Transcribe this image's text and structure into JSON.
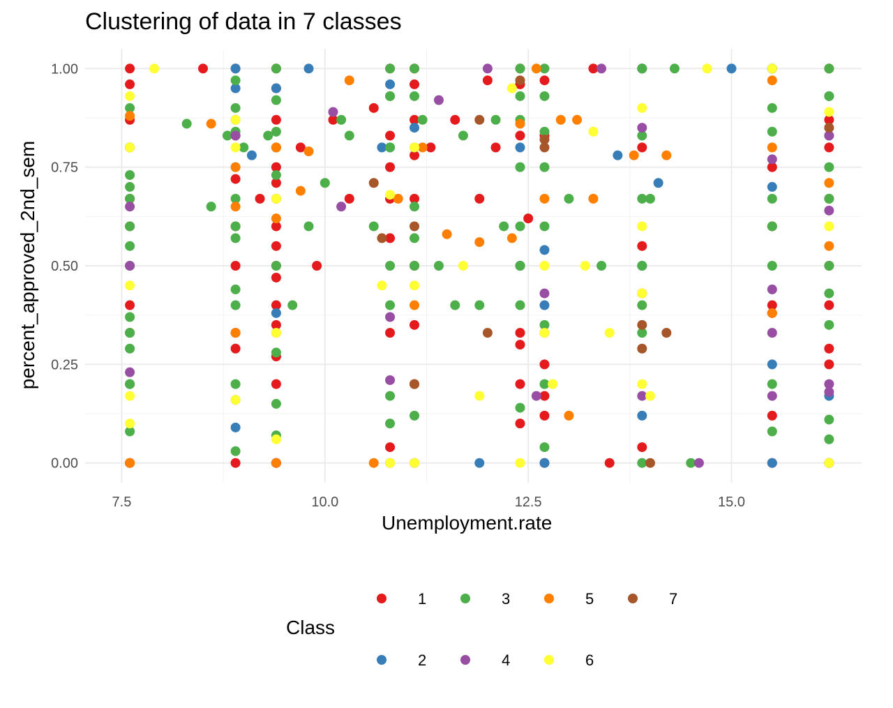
{
  "chart_data": {
    "type": "scatter",
    "title": "Clustering of data in 7 classes",
    "xlabel": "Unemployment.rate",
    "ylabel": "percent_approved_2nd_sem",
    "xlim": [
      7.05,
      16.6
    ],
    "ylim": [
      -0.05,
      1.05
    ],
    "x_ticks": [
      7.5,
      10.0,
      12.5,
      15.0
    ],
    "x_tick_labels": [
      "7.5",
      "10.0",
      "12.5",
      "15.0"
    ],
    "y_ticks": [
      0.0,
      0.25,
      0.5,
      0.75,
      1.0
    ],
    "y_tick_labels": [
      "0.00",
      "0.25",
      "0.50",
      "0.75",
      "1.00"
    ],
    "grid": true,
    "legend_title": "Class",
    "legend_position": "bottom",
    "colors": {
      "1": "#E41A1C",
      "2": "#377EB8",
      "3": "#4DAF4A",
      "4": "#984EA3",
      "5": "#FF7F00",
      "6": "#FFFF33",
      "7": "#A65628"
    },
    "series": [
      {
        "name": "1",
        "x": [
          7.6,
          7.6,
          7.6,
          7.6,
          7.6,
          7.6,
          7.6,
          7.6,
          7.6,
          7.6,
          8.9,
          8.9,
          8.9,
          8.9,
          8.9,
          8.9,
          8.9,
          8.9,
          9.4,
          9.4,
          9.4,
          9.4,
          9.4,
          9.4,
          9.4,
          9.4,
          9.4,
          9.4,
          9.4,
          9.4,
          9.4,
          9.4,
          9.4,
          9.4,
          9.4,
          9.4,
          10.8,
          10.8,
          10.8,
          10.8,
          10.8,
          10.8,
          10.8,
          10.8,
          11.1,
          11.1,
          11.1,
          11.1,
          11.1,
          11.1,
          11.1,
          11.1,
          12.4,
          12.4,
          12.4,
          12.4,
          12.4,
          12.4,
          12.4,
          12.4,
          12.7,
          12.7,
          12.7,
          12.7,
          12.7,
          12.7,
          12.7,
          13.9,
          13.9,
          13.9,
          13.9,
          13.9,
          15.5,
          15.5,
          15.5,
          15.5,
          15.5,
          15.5,
          15.5,
          16.2,
          16.2,
          16.2,
          16.2,
          16.2,
          16.2,
          16.2,
          16.2,
          16.2,
          8.5,
          9.2,
          9.7,
          9.9,
          10.1,
          10.3,
          10.6,
          11.3,
          11.6,
          11.9,
          12.0,
          12.1,
          12.5,
          13.3,
          13.5
        ],
        "y": [
          1.0,
          0.96,
          0.87,
          0.8,
          0.67,
          0.6,
          0.4,
          0.33,
          0.0,
          0.0,
          1.0,
          0.83,
          0.72,
          0.6,
          0.5,
          0.33,
          0.29,
          0.0,
          1.0,
          0.95,
          0.87,
          0.8,
          0.75,
          0.71,
          0.67,
          0.6,
          0.55,
          0.5,
          0.47,
          0.4,
          0.35,
          0.33,
          0.27,
          0.2,
          0.0,
          0.0,
          1.0,
          0.83,
          0.75,
          0.67,
          0.57,
          0.33,
          0.04,
          0.0,
          1.0,
          0.96,
          0.87,
          0.78,
          0.67,
          0.5,
          0.35,
          0.2,
          1.0,
          0.96,
          0.83,
          0.5,
          0.33,
          0.3,
          0.2,
          0.1,
          0.97,
          0.83,
          0.33,
          0.25,
          0.17,
          0.12,
          0.0,
          1.0,
          0.8,
          0.55,
          0.43,
          0.04,
          1.0,
          0.75,
          0.6,
          0.4,
          0.38,
          0.12,
          0.0,
          1.0,
          0.87,
          0.8,
          0.67,
          0.5,
          0.4,
          0.29,
          0.25,
          0.0,
          1.0,
          0.67,
          0.8,
          0.5,
          0.87,
          0.67,
          0.9,
          0.8,
          0.87,
          0.67,
          0.97,
          0.8,
          0.62,
          1.0,
          0.0
        ]
      },
      {
        "name": "2",
        "x": [
          7.6,
          8.9,
          8.9,
          8.9,
          8.9,
          8.9,
          9.4,
          9.4,
          9.4,
          10.8,
          10.8,
          11.1,
          11.1,
          12.4,
          12.4,
          12.7,
          12.7,
          12.7,
          13.9,
          13.9,
          13.9,
          15.5,
          15.5,
          15.5,
          15.5,
          16.2,
          16.2,
          16.2,
          16.2,
          9.1,
          9.8,
          10.7,
          11.9,
          13.6,
          14.1,
          15.0
        ],
        "y": [
          0.2,
          1.0,
          0.95,
          0.87,
          0.16,
          0.09,
          0.95,
          0.38,
          0.0,
          0.96,
          0.8,
          0.85,
          0.0,
          0.8,
          0.5,
          0.54,
          0.4,
          0.0,
          1.0,
          0.5,
          0.12,
          1.0,
          0.7,
          0.25,
          0.0,
          0.93,
          0.83,
          0.17,
          0.0,
          0.78,
          1.0,
          0.8,
          0.0,
          0.78,
          0.71,
          1.0
        ]
      },
      {
        "name": "3",
        "x": [
          7.6,
          7.6,
          7.6,
          7.6,
          7.6,
          7.6,
          7.6,
          7.6,
          7.6,
          7.6,
          7.6,
          7.6,
          7.6,
          8.9,
          8.9,
          8.9,
          8.9,
          8.9,
          8.9,
          8.9,
          8.9,
          8.9,
          8.9,
          8.9,
          9.4,
          9.4,
          9.4,
          9.4,
          9.4,
          9.4,
          9.4,
          9.4,
          9.4,
          10.8,
          10.8,
          10.8,
          10.8,
          10.8,
          10.8,
          10.8,
          11.1,
          11.1,
          11.1,
          11.1,
          11.1,
          11.1,
          11.1,
          12.4,
          12.4,
          12.4,
          12.4,
          12.4,
          12.4,
          12.4,
          12.4,
          12.7,
          12.7,
          12.7,
          12.7,
          12.7,
          12.7,
          12.7,
          12.7,
          13.9,
          13.9,
          13.9,
          13.9,
          13.9,
          13.9,
          13.9,
          15.5,
          15.5,
          15.5,
          15.5,
          15.5,
          15.5,
          15.5,
          15.5,
          16.2,
          16.2,
          16.2,
          16.2,
          16.2,
          16.2,
          16.2,
          16.2,
          16.2,
          16.2,
          8.3,
          8.6,
          8.8,
          9.0,
          9.3,
          9.6,
          9.8,
          10.0,
          10.2,
          10.3,
          10.6,
          10.8,
          11.2,
          11.4,
          11.6,
          11.7,
          11.9,
          12.1,
          12.2,
          13.0,
          13.4,
          14.0,
          14.3,
          14.5
        ],
        "y": [
          0.9,
          0.8,
          0.73,
          0.7,
          0.67,
          0.6,
          0.55,
          0.5,
          0.37,
          0.33,
          0.29,
          0.2,
          0.08,
          0.97,
          0.9,
          0.84,
          0.75,
          0.67,
          0.6,
          0.57,
          0.44,
          0.4,
          0.2,
          0.03,
          1.0,
          0.92,
          0.84,
          0.8,
          0.73,
          0.5,
          0.28,
          0.15,
          0.07,
          1.0,
          0.93,
          0.8,
          0.5,
          0.4,
          0.17,
          0.1,
          1.0,
          0.93,
          0.8,
          0.65,
          0.57,
          0.5,
          0.12,
          1.0,
          0.93,
          0.87,
          0.75,
          0.6,
          0.5,
          0.4,
          0.14,
          1.0,
          0.93,
          0.84,
          0.75,
          0.6,
          0.35,
          0.2,
          0.04,
          1.0,
          0.83,
          0.67,
          0.5,
          0.4,
          0.33,
          0.0,
          1.0,
          0.9,
          0.84,
          0.67,
          0.6,
          0.5,
          0.2,
          0.08,
          1.0,
          0.93,
          0.85,
          0.75,
          0.67,
          0.5,
          0.43,
          0.35,
          0.11,
          0.06,
          0.86,
          0.65,
          0.83,
          0.8,
          0.83,
          0.4,
          0.6,
          0.71,
          0.87,
          0.83,
          0.6,
          0.93,
          0.87,
          0.5,
          0.4,
          0.83,
          0.4,
          0.87,
          0.6,
          0.67,
          0.5,
          0.67,
          1.0,
          0.0
        ]
      },
      {
        "name": "4",
        "x": [
          7.6,
          7.6,
          7.6,
          8.9,
          9.4,
          10.1,
          10.2,
          10.8,
          10.8,
          11.1,
          11.4,
          12.0,
          12.6,
          12.7,
          13.4,
          13.9,
          13.9,
          14.6,
          15.5,
          15.5,
          15.5,
          15.5,
          16.2,
          16.2,
          16.2,
          16.2,
          16.2
        ],
        "y": [
          0.65,
          0.5,
          0.23,
          0.83,
          0.0,
          0.89,
          0.65,
          0.37,
          0.21,
          0.0,
          0.92,
          1.0,
          0.17,
          0.43,
          1.0,
          0.85,
          0.17,
          0.0,
          0.77,
          0.44,
          0.33,
          0.17,
          0.83,
          0.64,
          0.2,
          0.18,
          0.0
        ]
      },
      {
        "name": "5",
        "x": [
          7.6,
          7.6,
          8.6,
          8.9,
          8.9,
          8.9,
          9.4,
          9.4,
          9.4,
          9.7,
          9.8,
          10.3,
          10.6,
          10.9,
          11.1,
          11.2,
          11.5,
          11.9,
          12.3,
          12.4,
          12.6,
          12.7,
          12.9,
          13.0,
          13.1,
          13.3,
          13.8,
          14.2,
          15.5,
          15.5,
          15.5,
          16.2,
          16.2,
          16.2
        ],
        "y": [
          0.88,
          0.0,
          0.86,
          0.75,
          0.65,
          0.33,
          0.8,
          0.62,
          0.0,
          0.69,
          0.79,
          0.97,
          0.0,
          0.67,
          0.4,
          0.8,
          0.58,
          0.56,
          0.57,
          0.86,
          1.0,
          0.67,
          0.87,
          0.12,
          0.87,
          0.67,
          0.78,
          0.78,
          0.97,
          0.8,
          0.38,
          0.71,
          0.55,
          0.0
        ]
      },
      {
        "name": "6",
        "x": [
          7.6,
          7.6,
          7.6,
          7.6,
          7.6,
          7.9,
          8.9,
          8.9,
          8.9,
          9.4,
          9.4,
          9.4,
          10.7,
          10.8,
          10.8,
          11.1,
          11.1,
          11.1,
          11.7,
          11.9,
          12.3,
          12.4,
          12.7,
          12.7,
          12.8,
          13.2,
          13.3,
          13.5,
          13.9,
          13.9,
          13.9,
          13.9,
          14.0,
          14.7,
          15.5,
          16.2,
          16.2,
          16.2
        ],
        "y": [
          0.93,
          0.8,
          0.45,
          0.17,
          0.1,
          1.0,
          0.87,
          0.8,
          0.16,
          0.67,
          0.33,
          0.06,
          0.45,
          0.0,
          0.68,
          0.8,
          0.45,
          0.0,
          0.5,
          0.17,
          0.95,
          0.0,
          0.5,
          0.33,
          0.2,
          0.5,
          0.84,
          0.33,
          0.9,
          0.6,
          0.43,
          0.2,
          0.17,
          1.0,
          1.0,
          0.89,
          0.6,
          0.0
        ]
      },
      {
        "name": "7",
        "x": [
          10.6,
          10.7,
          11.1,
          11.1,
          11.9,
          12.0,
          12.4,
          12.7,
          12.7,
          13.9,
          13.9,
          14.0,
          14.2,
          16.2
        ],
        "y": [
          0.71,
          0.57,
          0.6,
          0.2,
          0.87,
          0.33,
          0.97,
          0.82,
          0.8,
          0.35,
          0.29,
          0.0,
          0.33,
          0.85
        ]
      }
    ]
  }
}
